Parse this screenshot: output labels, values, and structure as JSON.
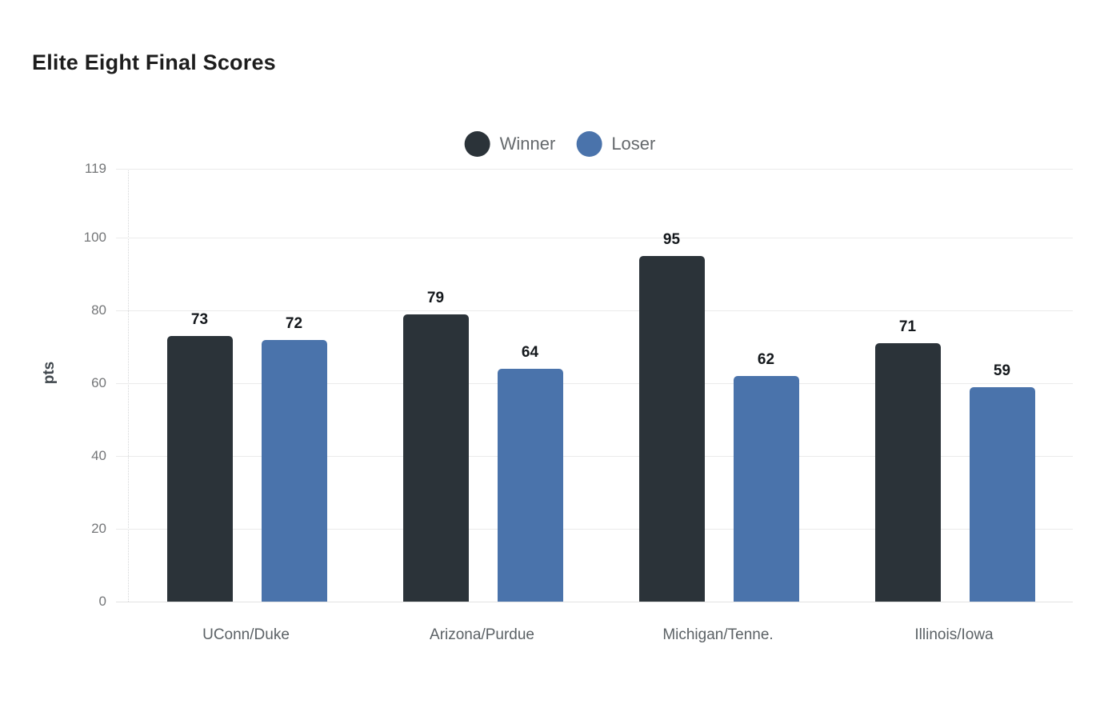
{
  "page": {
    "background": "#ffffff"
  },
  "header": {
    "title": "Elite Eight Final Scores"
  },
  "chart_data": {
    "type": "bar",
    "title": "Elite Eight Final Scores",
    "categories": [
      "UConn/Duke",
      "Arizona/Purdue",
      "Michigan/Tenne.",
      "Illinois/Iowa"
    ],
    "series": [
      {
        "name": "Winner",
        "color": "#2b3339",
        "values": [
          73,
          79,
          95,
          71
        ]
      },
      {
        "name": "Loser",
        "color": "#4a73ab",
        "values": [
          72,
          64,
          62,
          59
        ]
      }
    ],
    "xlabel": "",
    "ylabel": "pts",
    "ylim": [
      0,
      119
    ],
    "yticks": [
      0,
      20,
      40,
      60,
      80,
      100,
      119
    ],
    "grid": true,
    "value_labels": true,
    "legend": {
      "position": "top-center",
      "entries": [
        "Winner",
        "Loser"
      ]
    },
    "colors": {
      "grid": "#ebebeb",
      "axis_dotted_line": "#d4d6d8",
      "y_tick_label": "#747678",
      "category_label": "#5b6165",
      "value_label": "#14181c",
      "title": "#1d1d1d",
      "legend_text": "#65696c"
    }
  }
}
